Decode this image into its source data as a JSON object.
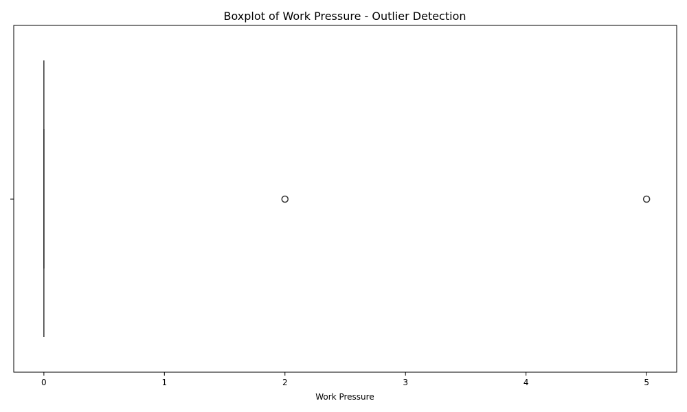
{
  "chart_data": {
    "type": "box",
    "orientation": "horizontal",
    "title": "Boxplot of Work Pressure - Outlier Detection",
    "xlabel": "Work Pressure",
    "ylabel": "",
    "xlim": [
      -0.25,
      5.25
    ],
    "xticks": [
      0,
      1,
      2,
      3,
      4,
      5
    ],
    "xtick_labels": [
      "0",
      "1",
      "2",
      "3",
      "4",
      "5"
    ],
    "grid": false,
    "box": {
      "min": 0,
      "q1": 0,
      "median": 0,
      "q3": 0,
      "max": 0,
      "outliers": [
        2,
        5
      ],
      "color": "#333333"
    }
  }
}
